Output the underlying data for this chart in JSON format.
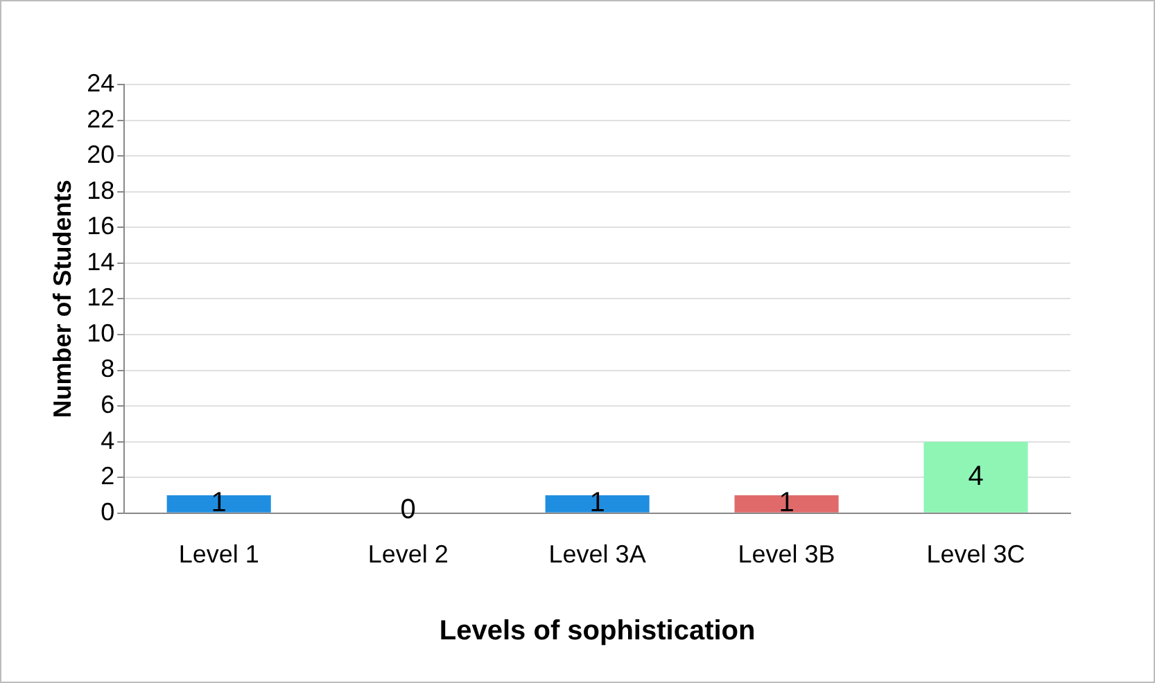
{
  "chart_data": {
    "type": "bar",
    "xlabel": "Levels of sophistication",
    "ylabel": "Number of Students",
    "categories": [
      "Level 1",
      "Level 2",
      "Level 3A",
      "Level 3B",
      "Level 3C"
    ],
    "values": [
      1,
      0,
      1,
      1,
      4
    ],
    "colors": [
      "#1f8ee0",
      "#7f7f7f",
      "#1f8ee0",
      "#e06a6a",
      "#8ef5b5"
    ],
    "ylim": [
      0,
      24
    ],
    "yticks": [
      0,
      2,
      4,
      6,
      8,
      10,
      12,
      14,
      16,
      18,
      20,
      22,
      24
    ],
    "grid": "y",
    "data_labels": true,
    "legend": false
  }
}
